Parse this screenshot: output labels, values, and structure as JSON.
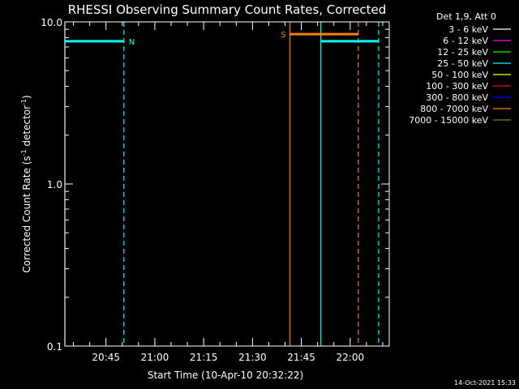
{
  "chart_data": {
    "type": "line",
    "title": "RHESSI Observing Summary Count Rates, Corrected",
    "xlabel": "Start Time (10-Apr-10 20:32:22)",
    "ylabel_parts": {
      "prefix": "Corrected Count Rate (s",
      "sup1": "-1",
      "mid": " detector",
      "sup2": "-1",
      "suffix": ")"
    },
    "y_scale": "log",
    "ylim": [
      0.1,
      10.0
    ],
    "y_ticks": [
      {
        "value": 0.1,
        "label": "0.1"
      },
      {
        "value": 1.0,
        "label": "1.0"
      },
      {
        "value": 10.0,
        "label": "10.0"
      }
    ],
    "xlim": [
      "20:32:22",
      "22:12:00"
    ],
    "x_ticks": [
      {
        "time": "20:45",
        "label": "20:45"
      },
      {
        "time": "21:00",
        "label": "21:00"
      },
      {
        "time": "21:15",
        "label": "21:15"
      },
      {
        "time": "21:30",
        "label": "21:30"
      },
      {
        "time": "21:45",
        "label": "21:45"
      },
      {
        "time": "22:00",
        "label": "22:00"
      }
    ],
    "legend": {
      "placement": "right",
      "header": "Det 1,9, Att 0",
      "entries": [
        {
          "label": "3 - 6 keV",
          "color": "#ffffff"
        },
        {
          "label": "6 - 12 keV",
          "color": "#ff00ff"
        },
        {
          "label": "12 - 25 keV",
          "color": "#00ff00"
        },
        {
          "label": "25 - 50 keV",
          "color": "#00ffff"
        },
        {
          "label": "50 - 100 keV",
          "color": "#ffff00"
        },
        {
          "label": "100 - 300 keV",
          "color": "#ff0000"
        },
        {
          "label": "300 - 800 keV",
          "color": "#0000ff"
        },
        {
          "label": "800 - 7000 keV",
          "color": "#ff8000"
        },
        {
          "label": "7000 - 15000 keV",
          "color": "#808000"
        }
      ]
    },
    "flag_bars": [
      {
        "label": "N",
        "color": "#00ffff",
        "value": 7.6,
        "start": "20:32:22",
        "end": "20:50:30"
      },
      {
        "label": "",
        "color": "#00ffff",
        "value": 7.6,
        "start": "21:51:00",
        "end": "22:08:45"
      },
      {
        "label": "S",
        "color": "#ff8000",
        "value": 8.4,
        "start": "21:41:30",
        "end": "22:02:30"
      }
    ],
    "markers": [
      {
        "time": "20:32:22",
        "color": "#00ffff",
        "style": "solid"
      },
      {
        "time": "20:50:30",
        "color": "#00ffff",
        "style": "dashed"
      },
      {
        "time": "21:41:30",
        "color": "#ff8000",
        "style": "solid"
      },
      {
        "time": "21:51:00",
        "color": "#00ffff",
        "style": "solid"
      },
      {
        "time": "22:02:30",
        "color": "#ff8000",
        "style": "dashed"
      },
      {
        "time": "22:08:45",
        "color": "#00ffff",
        "style": "dashed"
      }
    ],
    "grid": false
  },
  "footer": {
    "timestamp": "14-Oct-2021 15:33"
  }
}
